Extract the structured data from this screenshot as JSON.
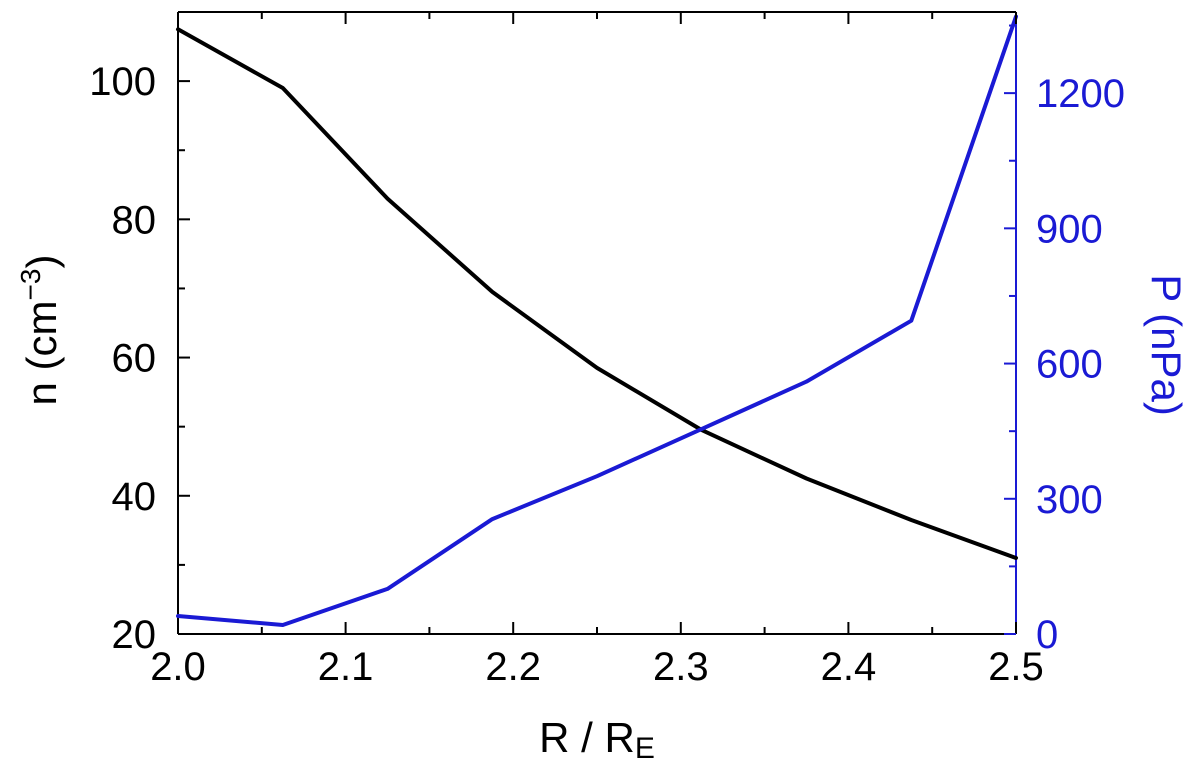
{
  "chart_data": {
    "type": "line",
    "x_axis": {
      "label_main": "R / R",
      "label_sub": "E",
      "range": [
        2.0,
        2.5
      ],
      "ticks": [
        2.0,
        2.1,
        2.2,
        2.3,
        2.4,
        2.5
      ],
      "tick_labels": [
        "2.0",
        "2.1",
        "2.2",
        "2.3",
        "2.4",
        "2.5"
      ]
    },
    "y_left": {
      "label_main": "n (cm",
      "label_sup": "−3",
      "label_end": ")",
      "range": [
        20,
        110
      ],
      "ticks": [
        20,
        40,
        60,
        80,
        100
      ],
      "tick_labels": [
        "20",
        "40",
        "60",
        "80",
        "100"
      ],
      "color": "#000000"
    },
    "y_right": {
      "label": "P (nPa)",
      "range": [
        0,
        1380
      ],
      "ticks": [
        0,
        300,
        600,
        900,
        1200
      ],
      "tick_labels": [
        "0",
        "300",
        "600",
        "900",
        "1200"
      ],
      "color": "#1a1ad4"
    },
    "x": [
      2.0,
      2.0625,
      2.125,
      2.1875,
      2.25,
      2.3125,
      2.375,
      2.4375,
      2.5
    ],
    "series": [
      {
        "axis": "left",
        "color": "#000000",
        "values": [
          107.5,
          99.0,
          83.0,
          69.5,
          58.5,
          49.5,
          42.5,
          36.5,
          31.0
        ]
      },
      {
        "axis": "right",
        "color": "#1a1ad4",
        "values": [
          40,
          20,
          100,
          255,
          350,
          455,
          560,
          695,
          1370
        ]
      }
    ],
    "grid": false,
    "legend": "none"
  }
}
